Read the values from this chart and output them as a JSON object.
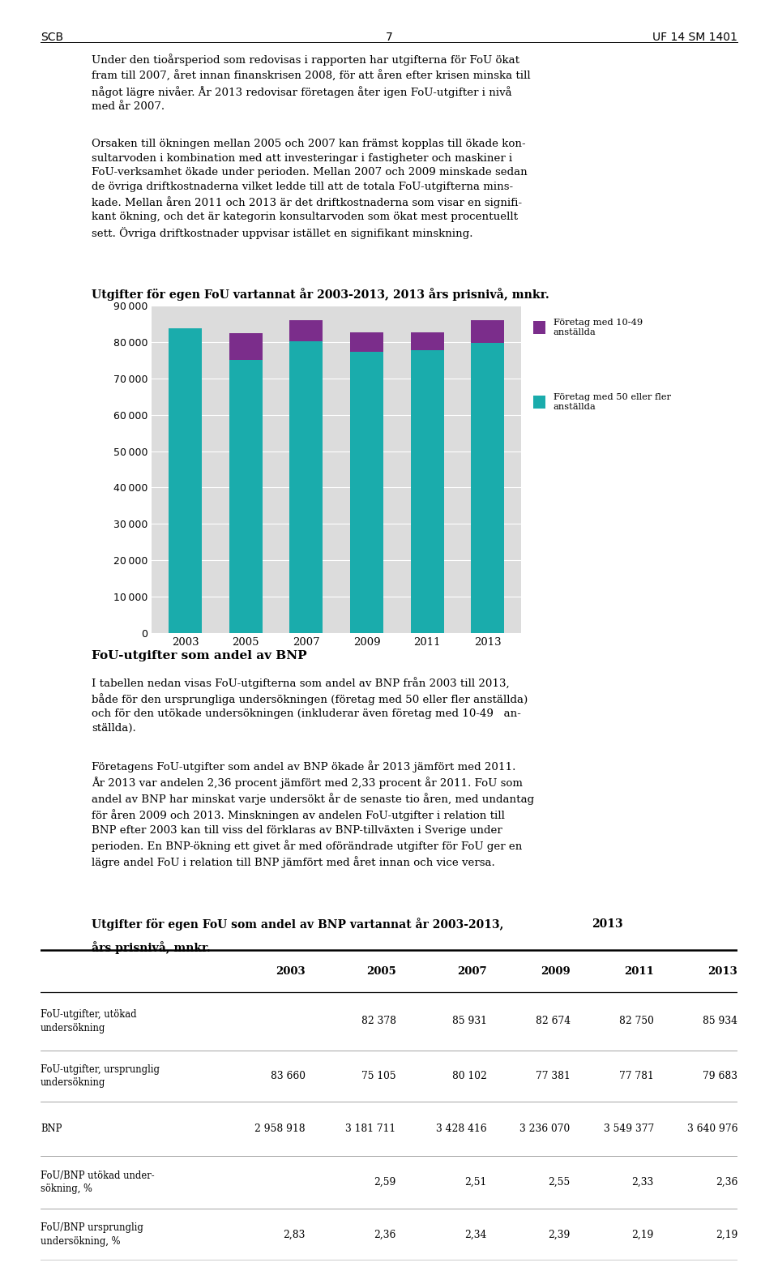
{
  "page_header_left": "SCB",
  "page_header_center": "7",
  "page_header_right": "UF 14 SM 1401",
  "chart_title": "Utgifter för egen FoU vartannat år 2003-2013, 2013 års prisnivå, mnkr.",
  "years": [
    "2003",
    "2005",
    "2007",
    "2009",
    "2011",
    "2013"
  ],
  "bottom_values": [
    83660,
    75105,
    80102,
    77381,
    77781,
    79683
  ],
  "top_values": [
    0,
    7273,
    5829,
    5293,
    4969,
    6251
  ],
  "bar_color_bottom": "#1AACAC",
  "bar_color_top": "#7B2D8B",
  "legend_label_top": "Företag med 10-49\nanställda",
  "legend_label_bottom": "Företag med 50 eller fler\nanställda",
  "ylim": [
    0,
    90000
  ],
  "yticks": [
    0,
    10000,
    20000,
    30000,
    40000,
    50000,
    60000,
    70000,
    80000,
    90000
  ],
  "section2_title": "FoU-utgifter som andel av BNP",
  "table_title_line1": "Utgifter för egen FoU som andel av BNP vartannat år 2003-2013,",
  "table_title_year": "2013",
  "table_title_line2": "års prisnivå, mnkr.",
  "table_col_labels": [
    "",
    "2003",
    "2005",
    "2007",
    "2009",
    "2011",
    "2013"
  ],
  "table_rows": [
    {
      "label": "FoU-utgifter, utökad\nundersökning",
      "values": [
        "",
        "82 378",
        "85 931",
        "82 674",
        "82 750",
        "85 934"
      ]
    },
    {
      "label": "FoU-utgifter, ursprunglig\nundersökning",
      "values": [
        "83 660",
        "75 105",
        "80 102",
        "77 381",
        "77 781",
        "79 683"
      ]
    },
    {
      "label": "BNP",
      "values": [
        "2 958 918",
        "3 181 711",
        "3 428 416",
        "3 236 070",
        "3 549 377",
        "3 640 976"
      ]
    },
    {
      "label": "FoU/BNP utökad under-\nsökning, %",
      "values": [
        "",
        "2,59",
        "2,51",
        "2,55",
        "2,33",
        "2,36"
      ]
    },
    {
      "label": "FoU/BNP ursprunglig\nundersökning, %",
      "values": [
        "2,83",
        "2,36",
        "2,34",
        "2,39",
        "2,19",
        "2,19"
      ]
    }
  ]
}
